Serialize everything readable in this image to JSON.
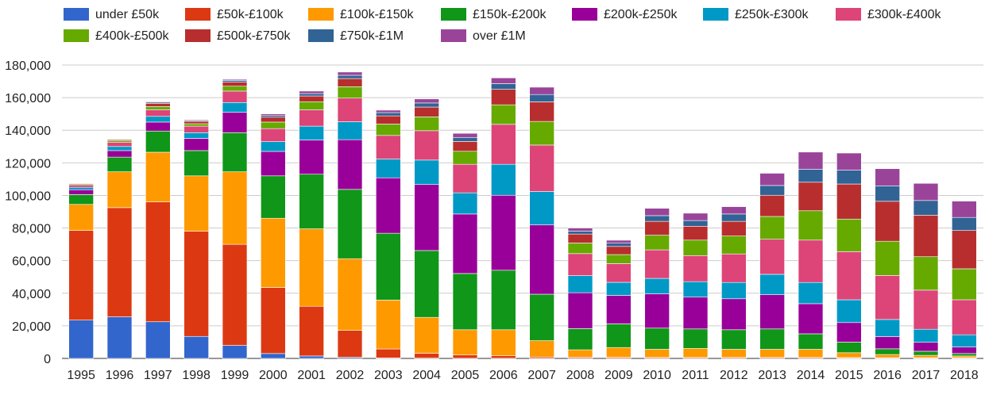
{
  "chart_data": {
    "type": "bar",
    "stacked": true,
    "title": "",
    "xlabel": "",
    "ylabel": "",
    "ylim": [
      0,
      180000
    ],
    "yticks": [
      0,
      20000,
      40000,
      60000,
      80000,
      100000,
      120000,
      140000,
      160000,
      180000
    ],
    "ytick_labels": [
      "0",
      "20,000",
      "40,000",
      "60,000",
      "80,000",
      "100,000",
      "120,000",
      "140,000",
      "160,000",
      "180,000"
    ],
    "grid": true,
    "legend_position": "top",
    "categories": [
      "1995",
      "1996",
      "1997",
      "1998",
      "1999",
      "2000",
      "2001",
      "2002",
      "2003",
      "2004",
      "2005",
      "2006",
      "2007",
      "2008",
      "2009",
      "2010",
      "2011",
      "2012",
      "2013",
      "2014",
      "2015",
      "2016",
      "2017",
      "2018"
    ],
    "series": [
      {
        "name": "under £50k",
        "color": "#3366cc",
        "values": [
          23500,
          25500,
          22500,
          13500,
          8000,
          3000,
          1500,
          700,
          300,
          200,
          100,
          100,
          100,
          100,
          100,
          100,
          100,
          100,
          100,
          100,
          100,
          100,
          100,
          100
        ]
      },
      {
        "name": "£50k-£100k",
        "color": "#dc3912",
        "values": [
          55000,
          67000,
          73500,
          64500,
          62000,
          40500,
          30500,
          16500,
          5500,
          3000,
          2000,
          1500,
          800,
          700,
          600,
          500,
          500,
          500,
          500,
          500,
          400,
          300,
          300,
          300
        ]
      },
      {
        "name": "£100k-£150k",
        "color": "#ff9900",
        "values": [
          16000,
          22000,
          30500,
          34000,
          44500,
          42500,
          47500,
          44000,
          30000,
          22000,
          15500,
          16000,
          10000,
          4500,
          6000,
          5000,
          5500,
          5000,
          5000,
          5000,
          3000,
          2000,
          1500,
          1100
        ]
      },
      {
        "name": "£150k-£200k",
        "color": "#109618",
        "values": [
          6000,
          9000,
          13000,
          15500,
          24000,
          26000,
          33500,
          42500,
          41000,
          41000,
          34500,
          36500,
          28500,
          13000,
          14500,
          13000,
          12000,
          12000,
          12500,
          9500,
          6500,
          3500,
          2500,
          1500
        ]
      },
      {
        "name": "£200k-£250k",
        "color": "#990099",
        "values": [
          3000,
          4000,
          5500,
          7500,
          12500,
          15000,
          21000,
          30500,
          34000,
          40500,
          36500,
          46000,
          42500,
          22000,
          17500,
          21000,
          19500,
          19000,
          21000,
          18500,
          12000,
          7500,
          5500,
          4000
        ]
      },
      {
        "name": "£250k-£300k",
        "color": "#0099c6",
        "values": [
          1500,
          2500,
          3500,
          3500,
          6000,
          6000,
          8500,
          11000,
          11500,
          15000,
          13000,
          19000,
          20500,
          10500,
          8000,
          9500,
          9500,
          10000,
          12500,
          13000,
          14000,
          10500,
          8000,
          7500
        ]
      },
      {
        "name": "£300k-£400k",
        "color": "#dd4477",
        "values": [
          1500,
          2500,
          4000,
          4000,
          7000,
          8000,
          10000,
          14500,
          14500,
          18000,
          17500,
          24500,
          28500,
          13500,
          11500,
          17500,
          16000,
          17500,
          21500,
          26000,
          29500,
          27000,
          24000,
          21500
        ]
      },
      {
        "name": "£400k-£500k",
        "color": "#66aa00",
        "values": [
          600,
          1000,
          2000,
          1500,
          3000,
          4000,
          5000,
          7000,
          7000,
          8500,
          8000,
          12000,
          14500,
          6500,
          5500,
          9000,
          9500,
          11000,
          14000,
          18000,
          20000,
          21000,
          20500,
          19000
        ]
      },
      {
        "name": "£500k-£750k",
        "color": "#b82e2e",
        "values": [
          400,
          700,
          2000,
          1500,
          2500,
          3000,
          3500,
          5000,
          5000,
          6000,
          6000,
          9500,
          12000,
          5500,
          5000,
          8500,
          8500,
          9000,
          13000,
          17500,
          21500,
          24500,
          25500,
          23500
        ]
      },
      {
        "name": "£750k-£1M",
        "color": "#316395",
        "values": [
          100,
          300,
          700,
          500,
          1000,
          1000,
          1500,
          2000,
          2000,
          2500,
          2500,
          3500,
          4500,
          1800,
          2000,
          3500,
          3500,
          4500,
          6000,
          8000,
          8500,
          9500,
          9000,
          8000
        ]
      },
      {
        "name": "over £1M",
        "color": "#994499",
        "values": [
          100,
          200,
          400,
          500,
          700,
          1000,
          1500,
          2000,
          1500,
          2500,
          2500,
          3500,
          4500,
          1900,
          1800,
          4500,
          4500,
          4500,
          7500,
          10500,
          10500,
          10500,
          10500,
          10000
        ]
      }
    ]
  }
}
